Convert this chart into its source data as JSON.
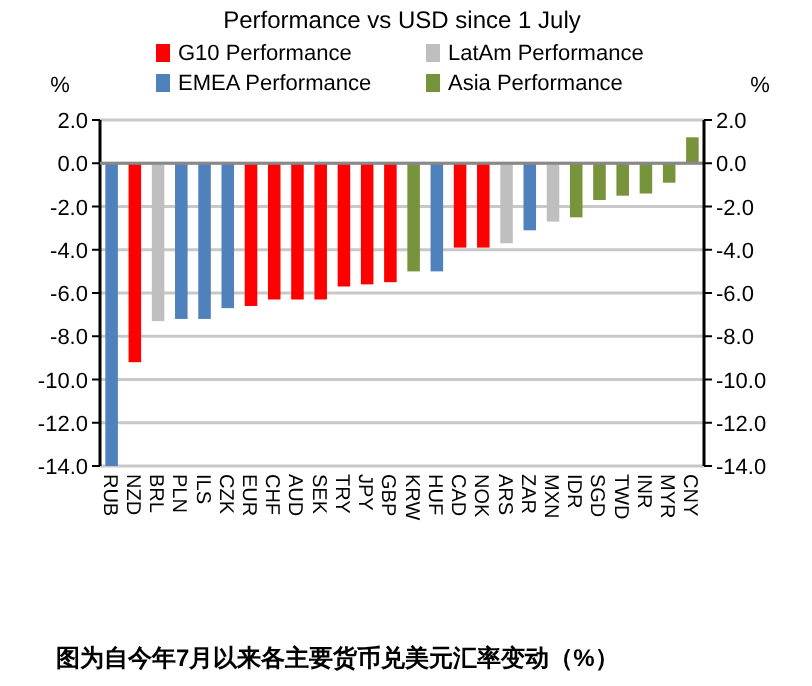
{
  "chart_data": {
    "type": "bar",
    "title": "Performance vs USD since 1 July",
    "ylabel": "%",
    "y2label": "%",
    "categories": [
      "RUB",
      "NZD",
      "BRL",
      "PLN",
      "ILS",
      "CZK",
      "EUR",
      "CHF",
      "AUD",
      "SEK",
      "TRY",
      "JPY",
      "GBP",
      "KRW",
      "HUF",
      "CAD",
      "NOK",
      "ARS",
      "ZAR",
      "MXN",
      "IDR",
      "SGD",
      "TWD",
      "INR",
      "MYR",
      "CNY"
    ],
    "series": [
      {
        "name": "G10 Performance",
        "color": "#ff0000",
        "values": [
          null,
          -9.2,
          null,
          null,
          null,
          null,
          -6.6,
          -6.3,
          -6.3,
          -6.3,
          -5.7,
          -5.6,
          -5.5,
          null,
          null,
          -3.9,
          -3.9,
          null,
          null,
          null,
          null,
          null,
          null,
          null,
          null,
          null
        ]
      },
      {
        "name": "LatAm Performance",
        "color": "#bfbfbf",
        "values": [
          null,
          null,
          -7.3,
          null,
          null,
          null,
          null,
          null,
          null,
          null,
          null,
          null,
          null,
          null,
          null,
          null,
          null,
          -3.7,
          null,
          -2.7,
          null,
          null,
          null,
          null,
          null,
          null
        ]
      },
      {
        "name": "EMEA Performance",
        "color": "#4f81bd",
        "values": [
          -14.0,
          null,
          null,
          -7.2,
          -7.2,
          -6.7,
          null,
          null,
          null,
          null,
          null,
          null,
          null,
          null,
          -5.0,
          null,
          null,
          null,
          -3.1,
          null,
          null,
          null,
          null,
          null,
          null,
          null
        ]
      },
      {
        "name": "Asia Performance",
        "color": "#77933c",
        "values": [
          null,
          null,
          null,
          null,
          null,
          null,
          null,
          null,
          null,
          null,
          null,
          null,
          null,
          -5.0,
          null,
          null,
          null,
          null,
          null,
          null,
          -2.5,
          -1.7,
          -1.5,
          -1.4,
          -0.9,
          1.2
        ]
      }
    ],
    "ylim": [
      -14,
      2
    ],
    "yticks": [
      {
        "value": 2,
        "label": "2.0"
      },
      {
        "value": 0,
        "label": "0.0"
      },
      {
        "value": -2,
        "label": "-2.0"
      },
      {
        "value": -4,
        "label": "-4.0"
      },
      {
        "value": -6,
        "label": "-6.0"
      },
      {
        "value": -8,
        "label": "-8.0"
      },
      {
        "value": -10,
        "label": "-10.0"
      },
      {
        "value": -12,
        "label": "-12.0"
      },
      {
        "value": -14,
        "label": "-14.0"
      }
    ],
    "y2lim": [
      -14,
      2
    ],
    "y2ticks": [
      {
        "value": 2,
        "label": "2.0"
      },
      {
        "value": 0,
        "label": "0.0"
      },
      {
        "value": -2,
        "label": "-2.0"
      },
      {
        "value": -4,
        "label": "-4.0"
      },
      {
        "value": -6,
        "label": "-6.0"
      },
      {
        "value": -8,
        "label": "-8.0"
      },
      {
        "value": -10,
        "label": "-10.0"
      },
      {
        "value": -12,
        "label": "-12.0"
      },
      {
        "value": -14,
        "label": "-14.0"
      }
    ],
    "grid": "y",
    "legend": "top",
    "annotations": [
      "图为自今年7月以来各主要货币兑美元汇率变动（%）"
    ]
  }
}
